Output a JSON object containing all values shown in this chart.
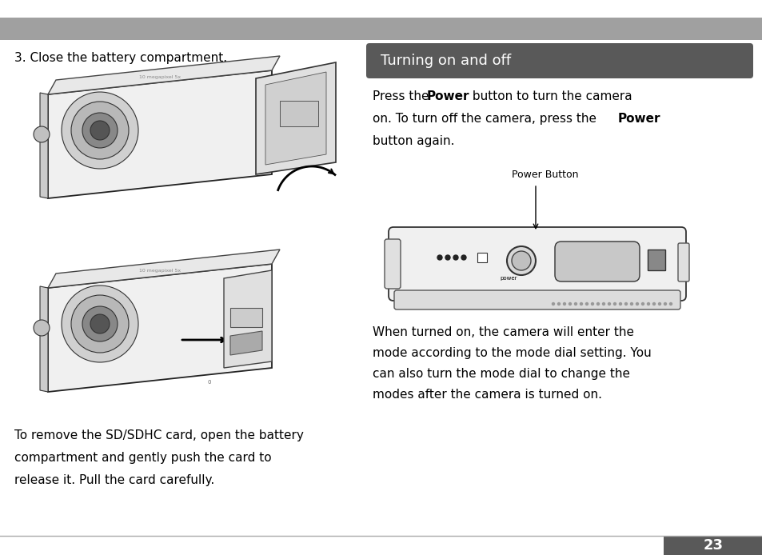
{
  "bg_color": "#ffffff",
  "header_bar_color": "#a0a0a0",
  "section_header_color": "#595959",
  "section_header_text": "Turning on and off",
  "left_heading": "3. Close the battery compartment.",
  "body_line1a": "Press the ",
  "body_line1b": "Power",
  "body_line1c": " button to turn the camera",
  "body_line2a": "on. To turn off the camera, press the ",
  "body_line2b": "Power",
  "body_line3": "button again.",
  "power_button_label": "Power Button",
  "bottom_left_1": "To remove the SD/SDHC card, open the battery",
  "bottom_left_2": "compartment and gently push the card to",
  "bottom_left_3": "release it. Pull the card carefully.",
  "page_number": "23",
  "when_1": "When turned on, the camera will enter the",
  "when_2": "mode according to the mode dial setting. You",
  "when_3": "can also turn the mode dial to change the",
  "when_4": "modes after the camera is turned on."
}
